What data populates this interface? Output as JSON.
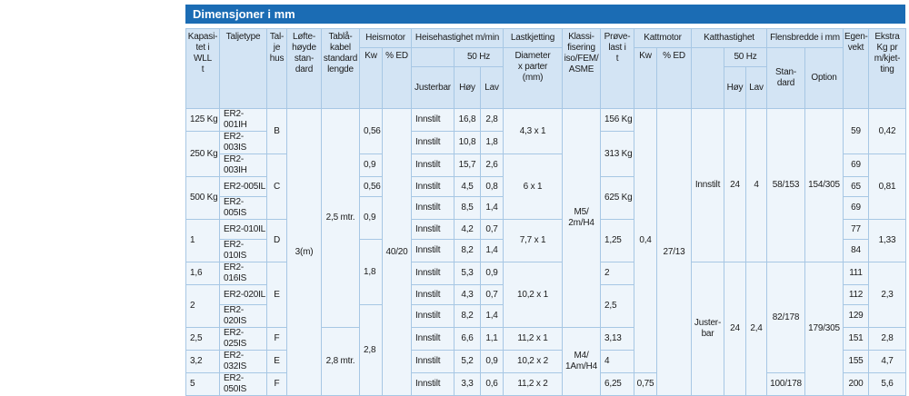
{
  "title": "Dimensjoner i mm",
  "header": {
    "row0": [
      "Kapasi-\ntet i\nWLL\nt",
      "Taljetype",
      "Tal-\nje\nhus",
      "Løfte-\nhøyde\nstan-\ndard",
      "Tablå-\nkabel\nstandard\nlengde",
      "Heismotor",
      "Heisehastighet m/min",
      "Lastkjetting",
      "Klassi-\nfisering\niso/FEM/\nASME",
      "Prøve-\nlast i\nt",
      "Kattmotor",
      "Katthastighet",
      "Flensbredde i mm",
      "Egen-\nvekt",
      "Ekstra\nKg pr\nm/kjet-\nting"
    ],
    "row1": [
      "Kw",
      "% ED",
      "50 Hz",
      "Diameter\nx parter\n(mm)",
      "Kw",
      "% ED",
      "50 Hz",
      "Stan-\ndard",
      "Option"
    ],
    "row2": [
      "Justerbar",
      "Høy",
      "Lav",
      "Høy",
      "Lav"
    ]
  },
  "rows": [
    [
      "125 Kg",
      "ER2-001IH",
      "B",
      "3(m)",
      "2,5 mtr.",
      "0,56",
      "40/20",
      "Innstilt",
      "16,8",
      "2,8",
      "4,3  x  1",
      "M5/\n2m/H4",
      "156 Kg",
      "0,4",
      "27/13",
      "Innstilt",
      "24",
      "4",
      "58/153",
      "154/305",
      "59",
      "0,42"
    ],
    [
      "250 Kg",
      "ER2-003IS",
      "Innstilt",
      "10,8",
      "1,8",
      "313 Kg"
    ],
    [
      "ER2-003IH",
      "C",
      "0,9",
      "Innstilt",
      "15,7",
      "2,6",
      "6  x  1",
      "69",
      "0,81"
    ],
    [
      "500 Kg",
      "ER2-005IL",
      "0,56",
      "Innstilt",
      "4,5",
      "0,8",
      "625 Kg",
      "65"
    ],
    [
      "ER2-005IS",
      "0,9",
      "Innstilt",
      "8,5",
      "1,4",
      "69"
    ],
    [
      "1",
      "ER2-010IL",
      "D",
      "Innstilt",
      "4,2",
      "0,7",
      "7,7  x  1",
      "1,25",
      "77",
      "1,33"
    ],
    [
      "ER2-010IS",
      "1,8",
      "Innstilt",
      "8,2",
      "1,4",
      "84"
    ],
    [
      "1,6",
      "ER2-016IS",
      "E",
      "Innstilt",
      "5,3",
      "0,9",
      "10,2  x  1",
      "2",
      "Juster-\nbar",
      "24",
      "2,4",
      "82/178",
      "179/305",
      "111",
      "2,3"
    ],
    [
      "2",
      "ER2-020IL",
      "Innstilt",
      "4,3",
      "0,7",
      "2,5",
      "112"
    ],
    [
      "ER2-020IS",
      "2,8",
      "Innstilt",
      "8,2",
      "1,4",
      "129"
    ],
    [
      "2,5",
      "ER2-025IS",
      "F",
      "2,8 mtr.",
      "Innstilt",
      "6,6",
      "1,1",
      "11,2  x  1",
      "M4/\n1Am/H4",
      "3,13",
      "151",
      "2,8"
    ],
    [
      "3,2",
      "ER2-032IS",
      "E",
      "Innstilt",
      "5,2",
      "0,9",
      "10,2  x  2",
      "4",
      "155",
      "4,7"
    ],
    [
      "5",
      "ER2-050IS",
      "F",
      "Innstilt",
      "3,3",
      "0,6",
      "11,2  x  2",
      "6,25",
      "0,75",
      "100/178",
      "200",
      "5,6"
    ]
  ]
}
